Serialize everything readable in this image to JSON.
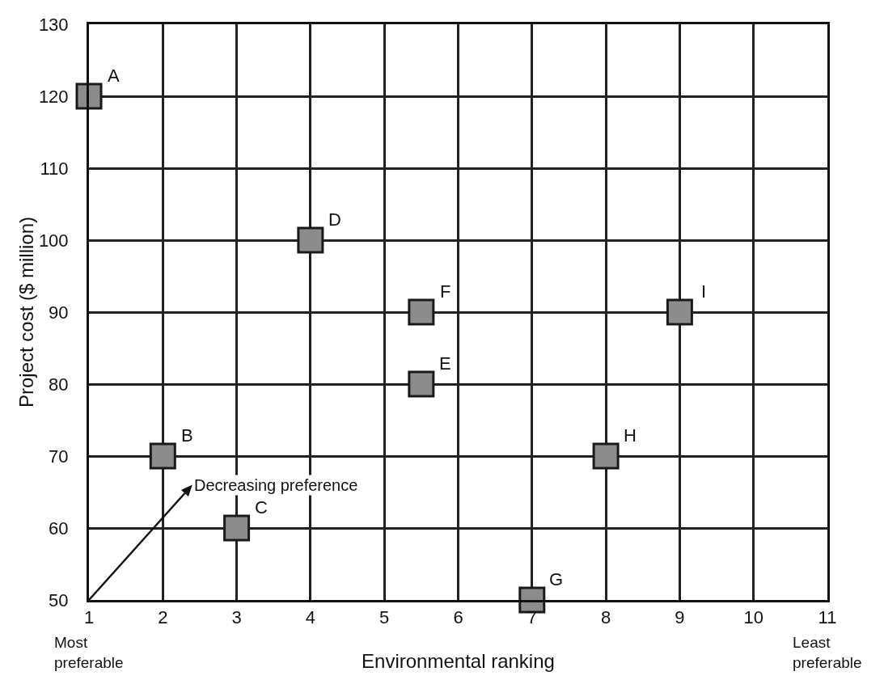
{
  "chart_data": {
    "type": "scatter",
    "xlabel": "Environmental ranking",
    "ylabel": "Project cost ($ million)",
    "x": [
      1,
      2,
      3,
      4,
      5.5,
      5.5,
      7,
      8,
      9
    ],
    "values": [
      120,
      70,
      60,
      100,
      80,
      90,
      50,
      70,
      90
    ],
    "color": "#8c8c8c",
    "marker": "square",
    "xlim": [
      1,
      11
    ],
    "xticks": [
      1,
      2,
      3,
      4,
      5,
      6,
      7,
      8,
      9,
      10,
      11
    ],
    "ylim": [
      50,
      130
    ],
    "yticks": [
      50,
      60,
      70,
      80,
      90,
      100,
      110,
      120,
      130
    ],
    "grid": true,
    "annotations": [
      {
        "text": "A",
        "x": 1,
        "y": 120
      },
      {
        "text": "B",
        "x": 2,
        "y": 70
      },
      {
        "text": "C",
        "x": 3,
        "y": 60
      },
      {
        "text": "D",
        "x": 4,
        "y": 100
      },
      {
        "text": "E",
        "x": 5.5,
        "y": 80
      },
      {
        "text": "F",
        "x": 5.5,
        "y": 90
      },
      {
        "text": "G",
        "x": 7,
        "y": 50
      },
      {
        "text": "H",
        "x": 8,
        "y": 70
      },
      {
        "text": "I",
        "x": 9,
        "y": 90
      },
      "Decreasing preference",
      "Most preferable",
      "Least preferable"
    ]
  }
}
